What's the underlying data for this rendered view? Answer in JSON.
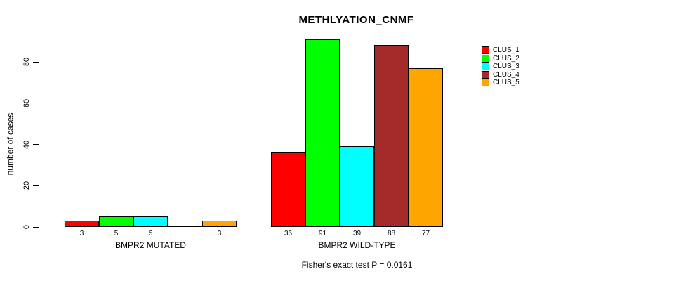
{
  "title": "METHLYATION_CNMF",
  "y_axis_label": "number of cases",
  "footer": "Fisher's exact test P = 0.0161",
  "legend": [
    {
      "label": "CLUS_1",
      "color": "#FF0000"
    },
    {
      "label": "CLUS_2",
      "color": "#00FF00"
    },
    {
      "label": "CLUS_3",
      "color": "#00FFFF"
    },
    {
      "label": "CLUS_4",
      "color": "#A52A2A"
    },
    {
      "label": "CLUS_5",
      "color": "#FFA500"
    }
  ],
  "chart_data": {
    "type": "bar",
    "title": "METHLYATION_CNMF",
    "xlabel": "",
    "ylabel": "number of cases",
    "yticks": [
      0,
      20,
      40,
      60,
      80
    ],
    "ylim": [
      0,
      95
    ],
    "grid": false,
    "legend_position": "right",
    "series_names": [
      "CLUS_1",
      "CLUS_2",
      "CLUS_3",
      "CLUS_4",
      "CLUS_5"
    ],
    "colors": [
      "#FF0000",
      "#00FF00",
      "#00FFFF",
      "#A52A2A",
      "#FFA500"
    ],
    "groups": [
      {
        "label": "BMPR2 MUTATED",
        "values": [
          3,
          5,
          5,
          0,
          3
        ],
        "bar_labels": [
          "3",
          "5",
          "5",
          "",
          "3"
        ]
      },
      {
        "label": "BMPR2 WILD-TYPE",
        "values": [
          36,
          91,
          39,
          88,
          77
        ],
        "bar_labels": [
          "36",
          "91",
          "39",
          "88",
          "77"
        ]
      }
    ],
    "annotation": "Fisher's exact test P = 0.0161"
  }
}
